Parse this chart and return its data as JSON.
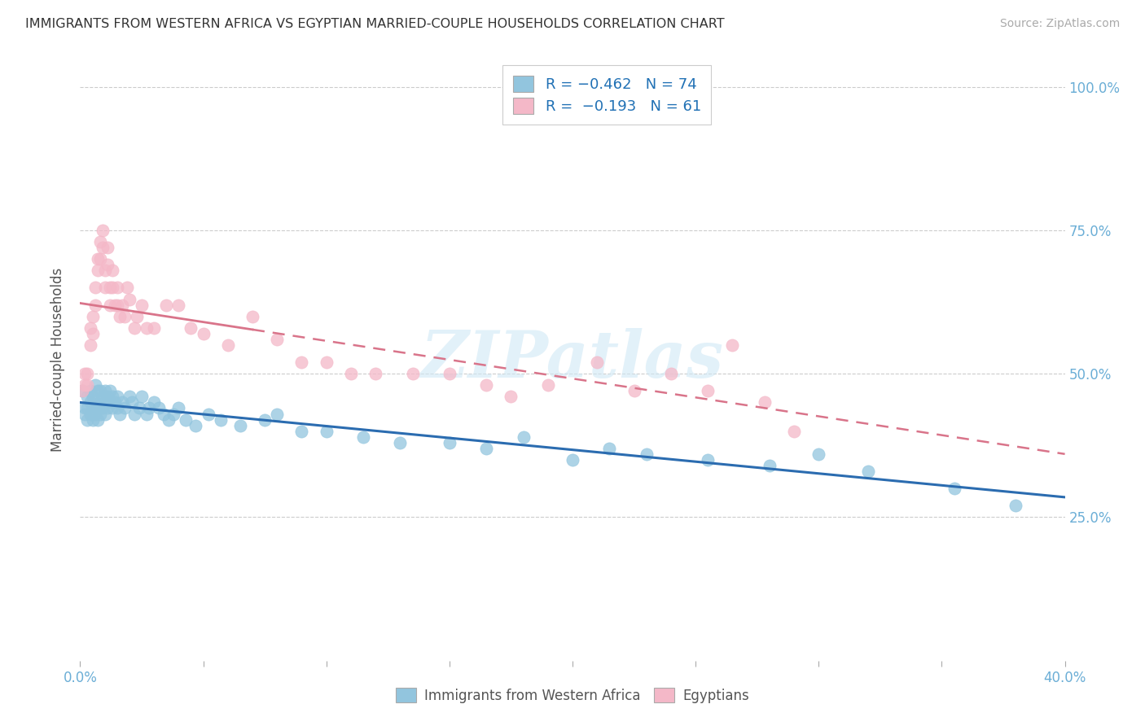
{
  "title": "IMMIGRANTS FROM WESTERN AFRICA VS EGYPTIAN MARRIED-COUPLE HOUSEHOLDS CORRELATION CHART",
  "source": "Source: ZipAtlas.com",
  "ylabel": "Married-couple Households",
  "ylim": [
    0.0,
    1.05
  ],
  "xlim": [
    0.0,
    0.4
  ],
  "yticks": [
    0.0,
    0.25,
    0.5,
    0.75,
    1.0
  ],
  "ytick_labels_right": [
    "",
    "25.0%",
    "50.0%",
    "75.0%",
    "100.0%"
  ],
  "blue_color": "#92c5de",
  "pink_color": "#f4b8c8",
  "blue_line_color": "#2b6cb0",
  "pink_line_color": "#d9748a",
  "legend_line1": "R = −0.462   N = 74",
  "legend_line2": "R =  −0.193   N = 61",
  "watermark": "ZIPatlas",
  "blue_scatter_x": [
    0.001,
    0.002,
    0.002,
    0.003,
    0.003,
    0.003,
    0.004,
    0.004,
    0.004,
    0.005,
    0.005,
    0.005,
    0.006,
    0.006,
    0.006,
    0.007,
    0.007,
    0.007,
    0.008,
    0.008,
    0.008,
    0.009,
    0.009,
    0.01,
    0.01,
    0.01,
    0.011,
    0.011,
    0.012,
    0.012,
    0.013,
    0.013,
    0.014,
    0.015,
    0.015,
    0.016,
    0.017,
    0.018,
    0.02,
    0.021,
    0.022,
    0.024,
    0.025,
    0.027,
    0.028,
    0.03,
    0.032,
    0.034,
    0.036,
    0.038,
    0.04,
    0.043,
    0.047,
    0.052,
    0.057,
    0.065,
    0.075,
    0.08,
    0.09,
    0.1,
    0.115,
    0.13,
    0.15,
    0.165,
    0.18,
    0.2,
    0.215,
    0.23,
    0.255,
    0.28,
    0.3,
    0.32,
    0.355,
    0.38
  ],
  "blue_scatter_y": [
    0.47,
    0.44,
    0.43,
    0.46,
    0.44,
    0.42,
    0.47,
    0.45,
    0.43,
    0.46,
    0.44,
    0.42,
    0.48,
    0.45,
    0.43,
    0.47,
    0.44,
    0.42,
    0.47,
    0.45,
    0.43,
    0.46,
    0.44,
    0.47,
    0.45,
    0.43,
    0.46,
    0.44,
    0.47,
    0.45,
    0.46,
    0.44,
    0.45,
    0.46,
    0.44,
    0.43,
    0.45,
    0.44,
    0.46,
    0.45,
    0.43,
    0.44,
    0.46,
    0.43,
    0.44,
    0.45,
    0.44,
    0.43,
    0.42,
    0.43,
    0.44,
    0.42,
    0.41,
    0.43,
    0.42,
    0.41,
    0.42,
    0.43,
    0.4,
    0.4,
    0.39,
    0.38,
    0.38,
    0.37,
    0.39,
    0.35,
    0.37,
    0.36,
    0.35,
    0.34,
    0.36,
    0.33,
    0.3,
    0.27
  ],
  "pink_scatter_x": [
    0.001,
    0.002,
    0.002,
    0.003,
    0.003,
    0.004,
    0.004,
    0.005,
    0.005,
    0.006,
    0.006,
    0.007,
    0.007,
    0.008,
    0.008,
    0.009,
    0.009,
    0.01,
    0.01,
    0.011,
    0.011,
    0.012,
    0.012,
    0.013,
    0.013,
    0.014,
    0.015,
    0.015,
    0.016,
    0.017,
    0.018,
    0.019,
    0.02,
    0.022,
    0.023,
    0.025,
    0.027,
    0.03,
    0.035,
    0.04,
    0.045,
    0.05,
    0.06,
    0.07,
    0.08,
    0.09,
    0.1,
    0.11,
    0.12,
    0.135,
    0.15,
    0.165,
    0.175,
    0.19,
    0.21,
    0.225,
    0.24,
    0.255,
    0.265,
    0.278,
    0.29
  ],
  "pink_scatter_y": [
    0.47,
    0.5,
    0.48,
    0.5,
    0.48,
    0.58,
    0.55,
    0.6,
    0.57,
    0.65,
    0.62,
    0.7,
    0.68,
    0.73,
    0.7,
    0.75,
    0.72,
    0.68,
    0.65,
    0.72,
    0.69,
    0.65,
    0.62,
    0.68,
    0.65,
    0.62,
    0.65,
    0.62,
    0.6,
    0.62,
    0.6,
    0.65,
    0.63,
    0.58,
    0.6,
    0.62,
    0.58,
    0.58,
    0.62,
    0.62,
    0.58,
    0.57,
    0.55,
    0.6,
    0.56,
    0.52,
    0.52,
    0.5,
    0.5,
    0.5,
    0.5,
    0.48,
    0.46,
    0.48,
    0.52,
    0.47,
    0.5,
    0.47,
    0.55,
    0.45,
    0.4
  ],
  "background_color": "#ffffff",
  "grid_color": "#cccccc",
  "title_color": "#333333"
}
